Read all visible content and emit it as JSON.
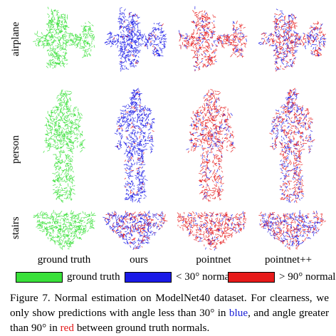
{
  "figure": {
    "rows": [
      {
        "label": "airplane"
      },
      {
        "label": "person"
      },
      {
        "label": "stairs"
      }
    ],
    "columns": [
      {
        "label": "ground truth"
      },
      {
        "label": "ours"
      },
      {
        "label": "pointnet"
      },
      {
        "label": "pointnet++"
      }
    ],
    "legend": [
      {
        "label": "ground truth",
        "color": "#39e03a"
      },
      {
        "label": "< 30° normal",
        "color": "#1a1ae6"
      },
      {
        "label": "> 90° normal",
        "color": "#e61a1a"
      }
    ],
    "caption": {
      "part1": "Figure 7. Normal estimation on ModelNet40 dataset.  For clearness, we only show predictions with angle less than 30° in ",
      "blue_word": "blue",
      "part2": ", and angle greater than 90° in ",
      "red_word": "red",
      "part3": " between ground truth normals."
    },
    "colors": {
      "green": "#39e03a",
      "blue": "#1a1ae6",
      "red": "#e61a1a"
    }
  }
}
